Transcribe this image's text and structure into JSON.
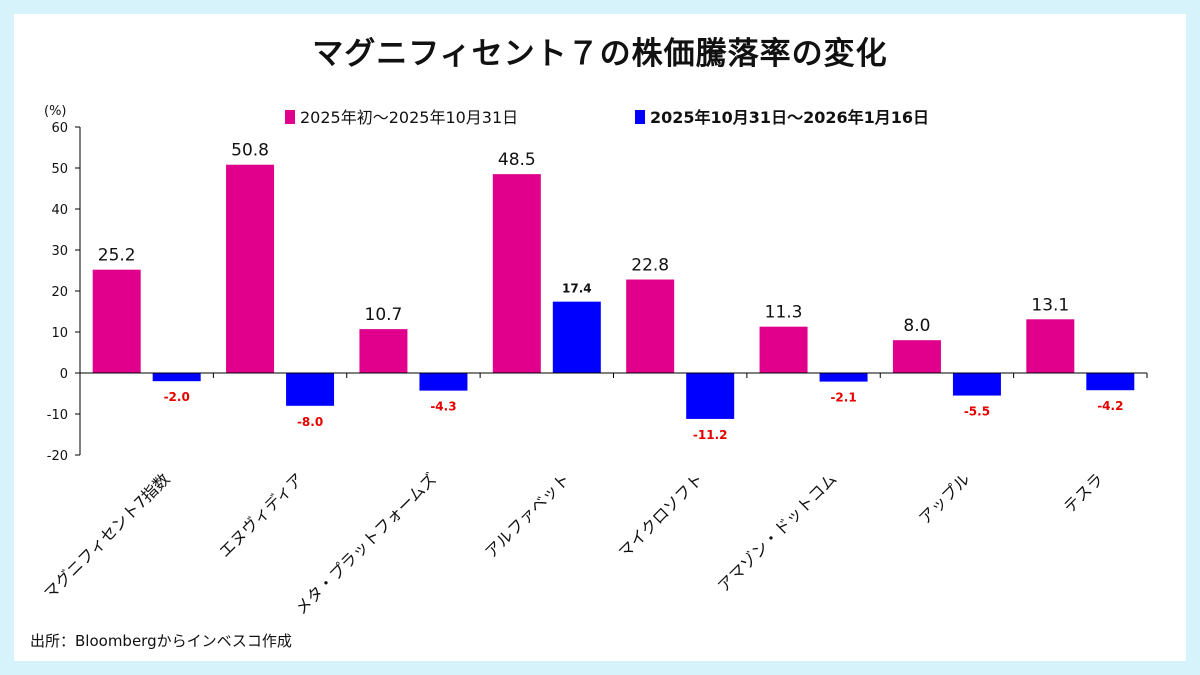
{
  "title": "マグニフィセント７の株価騰落率の変化",
  "source": "出所：Bloombergからインベスコ作成",
  "colors": {
    "series1": "#e0008c",
    "series2": "#0000ff",
    "negative_label": "#e60000",
    "axis": "#000000"
  },
  "chart_data": {
    "type": "bar",
    "title": "マグニフィセント７の株価騰落率の変化",
    "ylabel": "(%)",
    "xlabel": "",
    "ylim": [
      -20,
      60
    ],
    "yticks": [
      60,
      50,
      40,
      30,
      20,
      10,
      0,
      -10,
      -20
    ],
    "grid": false,
    "legend_position": "top",
    "categories": [
      "マグニフィセント7指数",
      "エヌヴィディア",
      "メタ・プラットフォームズ",
      "アルファベット",
      "マイクロソフト",
      "アマゾン・ドットコム",
      "アップル",
      "テスラ"
    ],
    "series": [
      {
        "name": "2025年初～2025年10月31日",
        "values": [
          25.2,
          50.8,
          10.7,
          48.5,
          22.8,
          11.3,
          8.0,
          13.1
        ],
        "labels": [
          "25.2",
          "50.8",
          "10.7",
          "48.5",
          "22.8",
          "11.3",
          "8.0",
          "13.1"
        ]
      },
      {
        "name": "2025年10月31日～2026年1月16日",
        "values": [
          -2.0,
          -8.0,
          -4.3,
          17.4,
          -11.2,
          -2.1,
          -5.5,
          -4.2
        ],
        "labels": [
          "-2.0",
          "-8.0",
          "-4.3",
          "17.4",
          "-11.2",
          "-2.1",
          "-5.5",
          "-4.2"
        ]
      }
    ]
  }
}
